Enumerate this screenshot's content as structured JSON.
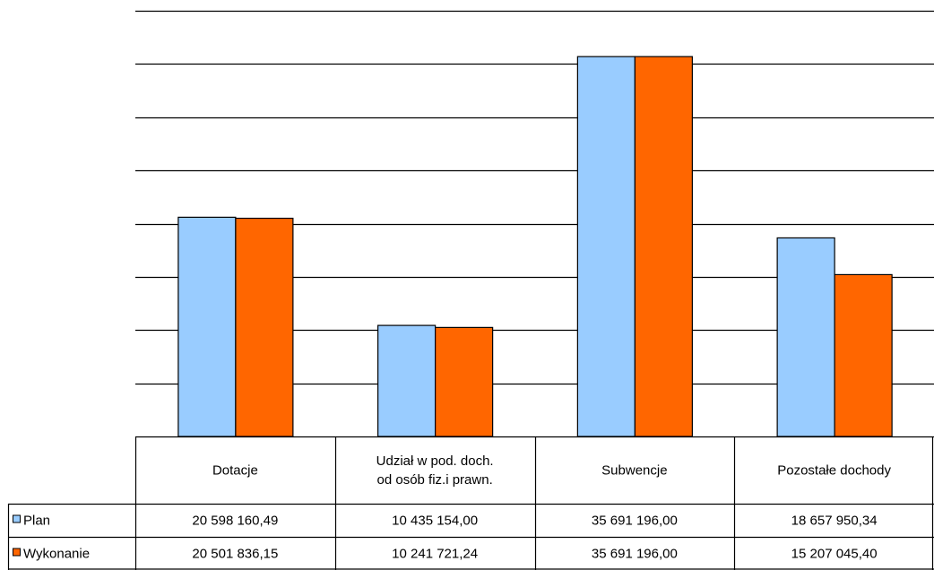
{
  "chart_data": {
    "type": "bar",
    "categories": [
      [
        "Dotacje"
      ],
      [
        "Udział w pod. doch.",
        "od osób fiz.i prawn."
      ],
      [
        "Subwencje"
      ],
      [
        "Pozostałe dochody"
      ]
    ],
    "series": [
      {
        "name": "Plan",
        "color": "#99ccff",
        "values": [
          20598160.49,
          10435154.0,
          35691196.0,
          18657950.34
        ],
        "labels": [
          "20 598 160,49",
          "10 435 154,00",
          "35 691 196,00",
          "18 657 950,34"
        ]
      },
      {
        "name": "Wykonanie",
        "color": "#ff6600",
        "values": [
          20501836.15,
          10241721.24,
          35691196.0,
          15207045.4
        ],
        "labels": [
          "20 501 836,15",
          "10 241 721,24",
          "35 691 196,00",
          "15 207 045,40"
        ]
      }
    ],
    "ylim": [
      0,
      40000000
    ],
    "y_gridline_step": 5000000,
    "grid": true,
    "y_tick_labels_shown": false,
    "legend": "data-table-left"
  }
}
